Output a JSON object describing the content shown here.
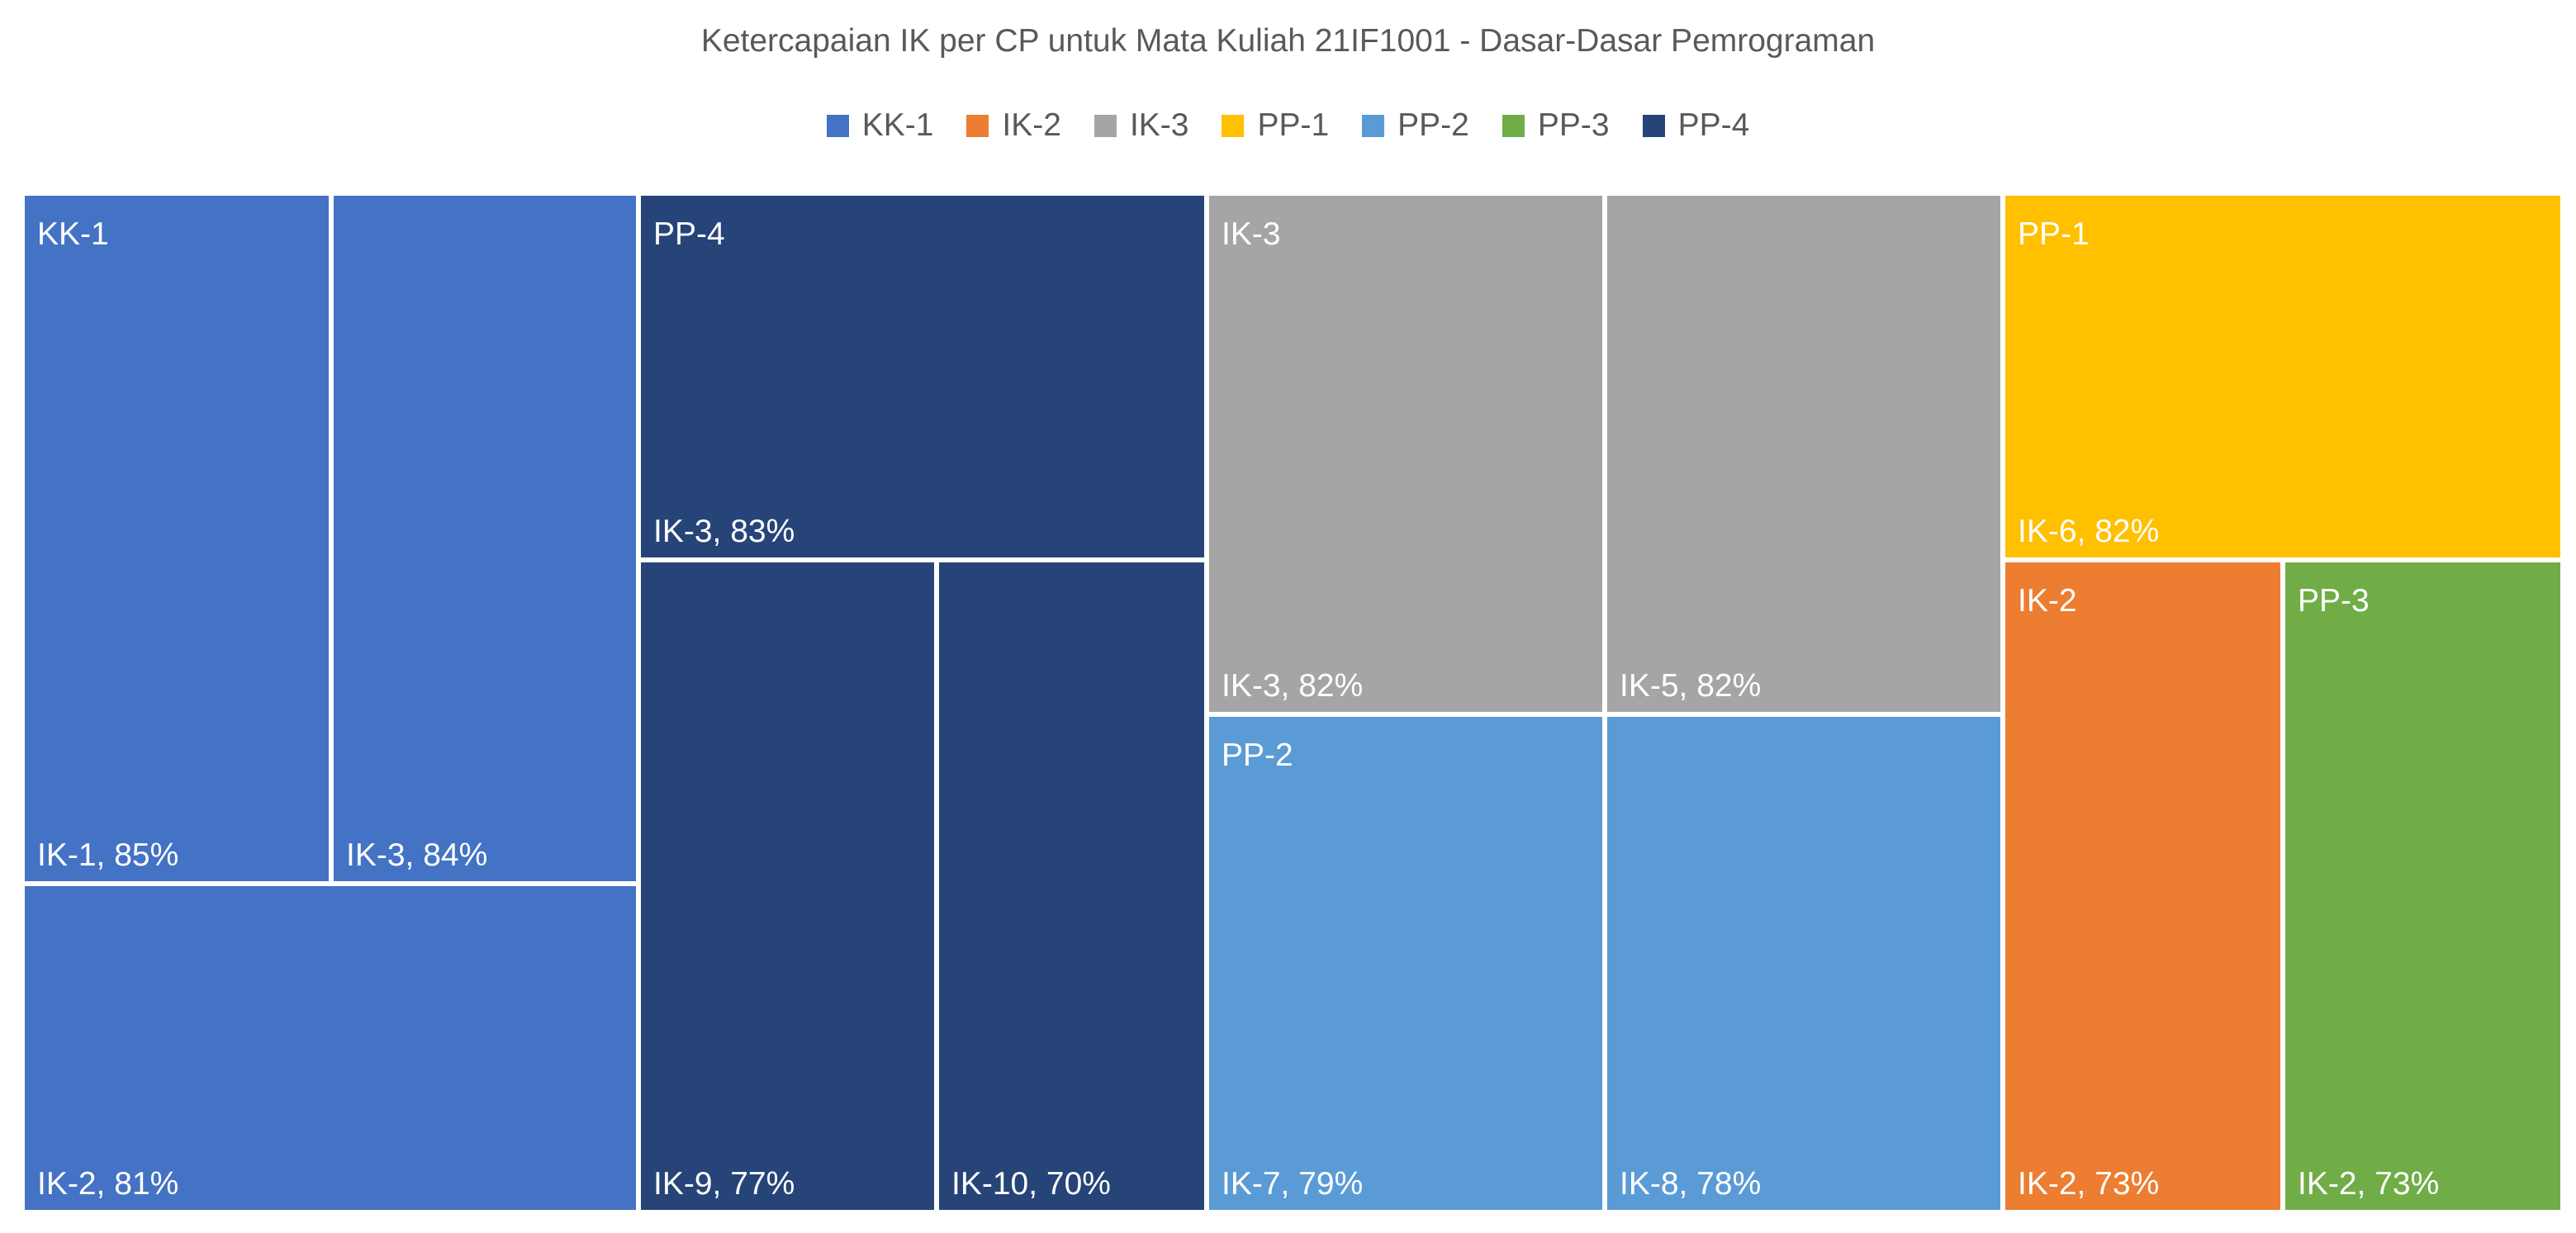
{
  "chart_data": {
    "type": "treemap",
    "title": "Ketercapaian IK per CP untuk Mata Kuliah 21IF1001 - Dasar-Dasar Pemrograman",
    "legend": [
      {
        "name": "KK-1",
        "color": "#4472C4"
      },
      {
        "name": "IK-2",
        "color": "#ED7D31"
      },
      {
        "name": "IK-3",
        "color": "#A5A5A5"
      },
      {
        "name": "PP-1",
        "color": "#FFC000"
      },
      {
        "name": "PP-2",
        "color": "#5B9BD5"
      },
      {
        "name": "PP-3",
        "color": "#70AD47"
      },
      {
        "name": "PP-4",
        "color": "#264478"
      }
    ],
    "legend_position": "top",
    "groups": [
      {
        "name": "KK-1",
        "color": "#4472C4",
        "items": [
          {
            "label": "IK-1, 85%",
            "name": "IK-1",
            "value": 85
          },
          {
            "label": "IK-3, 84%",
            "name": "IK-3",
            "value": 84
          },
          {
            "label": "IK-2, 81%",
            "name": "IK-2",
            "value": 81
          }
        ]
      },
      {
        "name": "PP-4",
        "color": "#264478",
        "items": [
          {
            "label": "IK-3, 83%",
            "name": "IK-3",
            "value": 83
          },
          {
            "label": "IK-9, 77%",
            "name": "IK-9",
            "value": 77
          },
          {
            "label": "IK-10, 70%",
            "name": "IK-10",
            "value": 70
          }
        ]
      },
      {
        "name": "IK-3",
        "color": "#A5A5A5",
        "items": [
          {
            "label": "IK-3, 82%",
            "name": "IK-3",
            "value": 82
          },
          {
            "label": "IK-5, 82%",
            "name": "IK-5",
            "value": 82
          }
        ]
      },
      {
        "name": "PP-2",
        "color": "#5B9BD5",
        "items": [
          {
            "label": "IK-7, 79%",
            "name": "IK-7",
            "value": 79
          },
          {
            "label": "IK-8, 78%",
            "name": "IK-8",
            "value": 78
          }
        ]
      },
      {
        "name": "PP-1",
        "color": "#FFC000",
        "items": [
          {
            "label": "IK-6, 82%",
            "name": "IK-6",
            "value": 82
          }
        ]
      },
      {
        "name": "IK-2",
        "color": "#ED7D31",
        "items": [
          {
            "label": "IK-2, 73%",
            "name": "IK-2",
            "value": 73
          }
        ]
      },
      {
        "name": "PP-3",
        "color": "#70AD47",
        "items": [
          {
            "label": "IK-2, 73%",
            "name": "IK-2",
            "value": 73
          }
        ]
      }
    ]
  }
}
